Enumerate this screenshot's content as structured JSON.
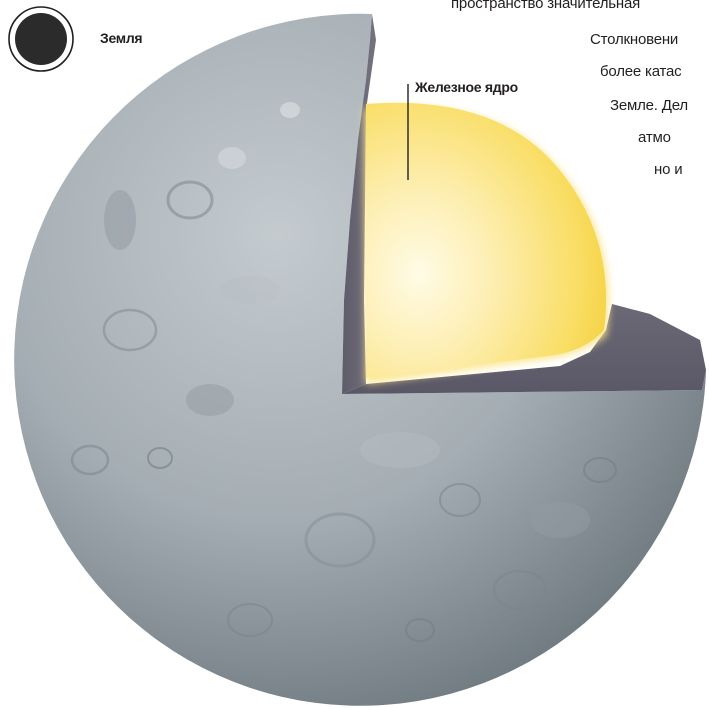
{
  "legend": {
    "earth_label": "Земля"
  },
  "diagram": {
    "core_label": "Железное ядро",
    "colors": {
      "surface": "#a7afb4",
      "surface_dark": "#6f7a82",
      "mantle": "#6a6775",
      "core": "#f7d64a",
      "core_light": "#fff6c8",
      "earth_dot": "#2b2b2b"
    }
  },
  "caption": {
    "lines": [
      "пространство значительная",
      "Столкновени",
      "более катас",
      "Земле. Дел",
      "атмо",
      "но и"
    ]
  }
}
